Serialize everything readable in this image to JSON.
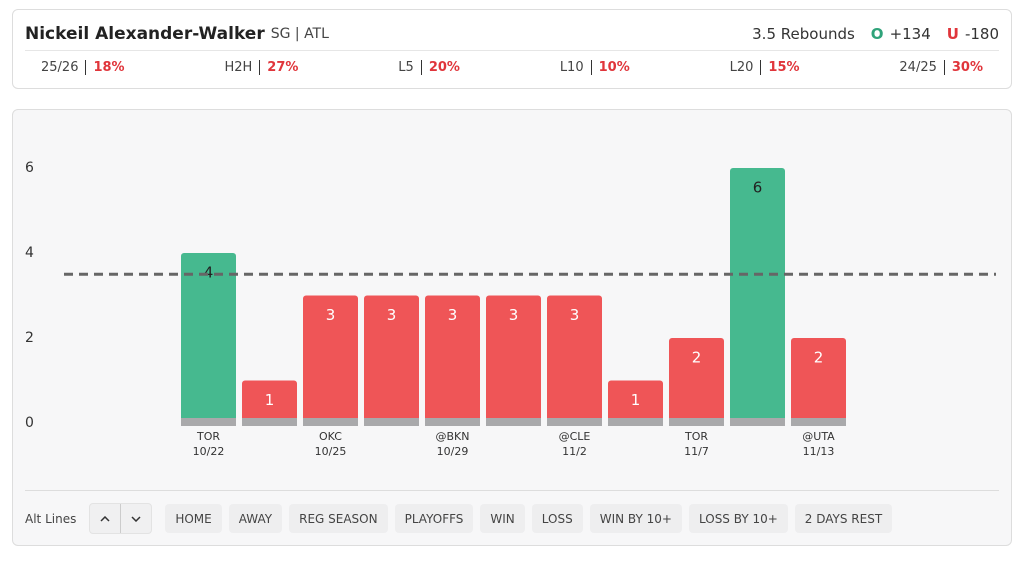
{
  "header": {
    "name": "Nickeil Alexander-Walker",
    "position": "SG | ATL",
    "line": "3.5 Rebounds",
    "over": {
      "symbol": "O",
      "odds": "+134"
    },
    "under": {
      "symbol": "U",
      "odds": "-180"
    }
  },
  "stats": [
    {
      "label": "25/26",
      "value": "18%"
    },
    {
      "label": "H2H",
      "value": "27%"
    },
    {
      "label": "L5",
      "value": "20%"
    },
    {
      "label": "L10",
      "value": "10%"
    },
    {
      "label": "L20",
      "value": "15%"
    },
    {
      "label": "24/25",
      "value": "30%"
    }
  ],
  "chart_data": {
    "type": "bar",
    "categories": [
      [
        "TOR",
        "10/22"
      ],
      null,
      [
        "OKC",
        "10/25"
      ],
      null,
      [
        "@BKN",
        "10/29"
      ],
      null,
      [
        "@CLE",
        "11/2"
      ],
      null,
      [
        "TOR",
        "11/7"
      ],
      null,
      [
        "@UTA",
        "11/13"
      ]
    ],
    "values": [
      4,
      1,
      3,
      3,
      3,
      3,
      3,
      1,
      2,
      6,
      2
    ],
    "threshold": 3.5,
    "over_color": "#46b98f",
    "under_color": "#ef5557",
    "ylim": [
      0,
      6
    ],
    "yticks": [
      0,
      2,
      4,
      6
    ]
  },
  "filters": {
    "label": "Alt Lines",
    "buttons": [
      "HOME",
      "AWAY",
      "REG SEASON",
      "PLAYOFFS",
      "WIN",
      "LOSS",
      "WIN BY 10+",
      "LOSS BY 10+",
      "2 DAYS REST"
    ]
  }
}
